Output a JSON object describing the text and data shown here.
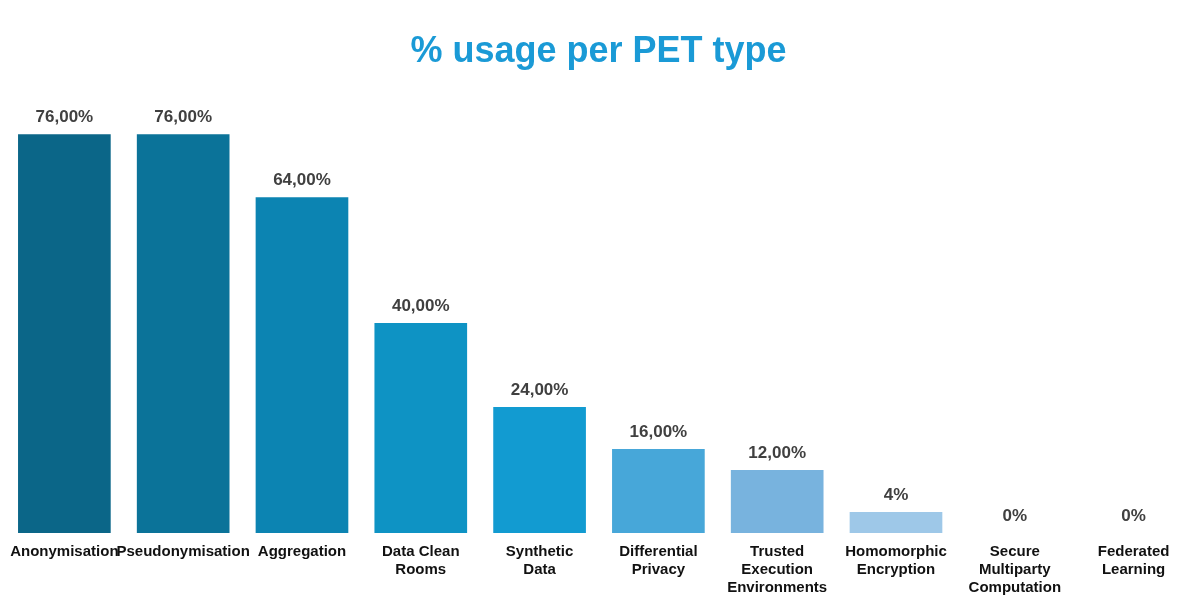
{
  "chart_data": {
    "type": "bar",
    "title": "% usage per PET type",
    "categories": [
      "Anonymisation",
      "Pseudonymisation",
      "Aggregation",
      "Data Clean Rooms",
      "Synthetic Data",
      "Differential Privacy",
      "Trusted Execution Environments",
      "Homomorphic Encryption",
      "Secure Multiparty Computation",
      "Federated Learning"
    ],
    "values": [
      76,
      76,
      64,
      40,
      24,
      16,
      12,
      4,
      0,
      0
    ],
    "colors": [
      "#0b6688",
      "#0b7399",
      "#0c84b2",
      "#0e93c4",
      "#129bd1",
      "#47a7d9",
      "#78b3de",
      "#9ec8e8",
      "#b5d6ee",
      "#c5def2"
    ],
    "value_labels": [
      "76,00%",
      "76,00%",
      "64,00%",
      "40,00%",
      "24,00%",
      "16,00%",
      "12,00%",
      "4%",
      "0%",
      "0%"
    ],
    "grid": false,
    "legend": false
  }
}
